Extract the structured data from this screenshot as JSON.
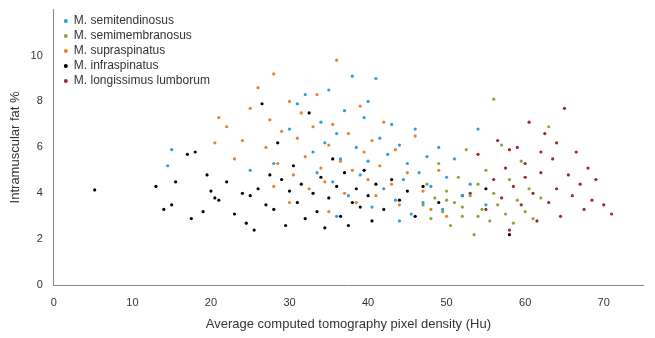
{
  "chart_data": {
    "type": "scatter",
    "x_label": "Average computed tomography pixel density (Hu)",
    "y_label": "Intramuscular fat %",
    "xlim": [
      0,
      75
    ],
    "xticks": [
      0,
      10,
      20,
      30,
      40,
      50,
      60,
      70
    ],
    "ylim": [
      0,
      12
    ],
    "yticks": [
      0,
      2,
      4,
      6,
      8,
      10
    ],
    "grid": false,
    "legend": "top-left",
    "marker": "circle",
    "series": [
      {
        "name": "M. semitendinosus",
        "color": "#2c9ee0",
        "values": [
          [
            14.5,
            5.2
          ],
          [
            15,
            5.9
          ],
          [
            25,
            5.0
          ],
          [
            28,
            5.3
          ],
          [
            30,
            6.8
          ],
          [
            31,
            7.9
          ],
          [
            32,
            8.3
          ],
          [
            33,
            5.8
          ],
          [
            33.5,
            4.9
          ],
          [
            34,
            7.1
          ],
          [
            34.5,
            6.2
          ],
          [
            35,
            8.5
          ],
          [
            35.5,
            4.5
          ],
          [
            36,
            6.6
          ],
          [
            36.5,
            5.5
          ],
          [
            37,
            7.6
          ],
          [
            37.5,
            3.9
          ],
          [
            38,
            9.1
          ],
          [
            38.5,
            6.0
          ],
          [
            39,
            4.8
          ],
          [
            39.5,
            7.3
          ],
          [
            40,
            5.4
          ],
          [
            40.5,
            3.4
          ],
          [
            41,
            9.0
          ],
          [
            41.5,
            6.4
          ],
          [
            42,
            4.2
          ],
          [
            42.5,
            5.7
          ],
          [
            43,
            7.0
          ],
          [
            43.5,
            3.7
          ],
          [
            44,
            6.1
          ],
          [
            44.5,
            4.6
          ],
          [
            45,
            5.3
          ],
          [
            45.5,
            3.1
          ],
          [
            46,
            6.8
          ],
          [
            46.5,
            4.9
          ],
          [
            47,
            3.6
          ],
          [
            47.5,
            5.6
          ],
          [
            48,
            4.3
          ],
          [
            49,
            6.0
          ],
          [
            49.5,
            3.3
          ],
          [
            50,
            4.7
          ],
          [
            51,
            5.5
          ],
          [
            52,
            3.9
          ],
          [
            53,
            4.4
          ],
          [
            54,
            6.8
          ],
          [
            55,
            3.5
          ],
          [
            36,
            3.0
          ],
          [
            44,
            2.8
          ],
          [
            40,
            8.0
          ]
        ]
      },
      {
        "name": "M. semimembranosus",
        "color": "#8aa63a",
        "values": [
          [
            47,
            3.5
          ],
          [
            47.5,
            4.4
          ],
          [
            48,
            2.9
          ],
          [
            48.5,
            3.8
          ],
          [
            49,
            5.3
          ],
          [
            49.5,
            3.2
          ],
          [
            50,
            4.1
          ],
          [
            50.5,
            2.6
          ],
          [
            51,
            3.6
          ],
          [
            51.5,
            4.7
          ],
          [
            52,
            3.0
          ],
          [
            52.5,
            5.9
          ],
          [
            53,
            3.9
          ],
          [
            53.5,
            2.2
          ],
          [
            54,
            4.4
          ],
          [
            54.5,
            3.3
          ],
          [
            55,
            5.0
          ],
          [
            55.5,
            2.8
          ],
          [
            56,
            4.0
          ],
          [
            56.5,
            3.5
          ],
          [
            57,
            6.1
          ],
          [
            57.5,
            3.1
          ],
          [
            58,
            4.6
          ],
          [
            58.5,
            2.7
          ],
          [
            59,
            3.7
          ],
          [
            59.5,
            5.4
          ],
          [
            60,
            3.2
          ],
          [
            60.5,
            4.2
          ],
          [
            61,
            2.9
          ],
          [
            62,
            3.8
          ],
          [
            63,
            6.9
          ],
          [
            56,
            8.1
          ],
          [
            54,
            3.0
          ],
          [
            52,
            3.4
          ],
          [
            50,
            3.7
          ]
        ]
      },
      {
        "name": "M. supraspinatus",
        "color": "#f07f2a",
        "values": [
          [
            20.5,
            6.2
          ],
          [
            21,
            7.3
          ],
          [
            22,
            6.9
          ],
          [
            23,
            5.5
          ],
          [
            24,
            6.3
          ],
          [
            25,
            7.7
          ],
          [
            26,
            8.6
          ],
          [
            27,
            6.0
          ],
          [
            27.5,
            7.2
          ],
          [
            28,
            9.2
          ],
          [
            28.5,
            5.3
          ],
          [
            29,
            6.7
          ],
          [
            30,
            8.0
          ],
          [
            30.5,
            4.8
          ],
          [
            31,
            6.4
          ],
          [
            31.5,
            7.5
          ],
          [
            32,
            5.6
          ],
          [
            32.5,
            4.2
          ],
          [
            33,
            6.9
          ],
          [
            33.5,
            8.3
          ],
          [
            34,
            5.1
          ],
          [
            34.5,
            4.5
          ],
          [
            35,
            6.1
          ],
          [
            35.5,
            7.0
          ],
          [
            36,
            9.8
          ],
          [
            36.5,
            5.4
          ],
          [
            37,
            4.0
          ],
          [
            37.5,
            6.6
          ],
          [
            38,
            5.0
          ],
          [
            38.5,
            3.6
          ],
          [
            39,
            7.8
          ],
          [
            39.5,
            5.8
          ],
          [
            40,
            4.6
          ],
          [
            40.5,
            6.3
          ],
          [
            41,
            3.9
          ],
          [
            41.5,
            5.2
          ],
          [
            42,
            7.1
          ],
          [
            43,
            4.4
          ],
          [
            43.5,
            5.9
          ],
          [
            44,
            3.5
          ],
          [
            45,
            4.9
          ],
          [
            46,
            6.5
          ],
          [
            47,
            4.1
          ],
          [
            48,
            3.3
          ],
          [
            49,
            5.0
          ],
          [
            50,
            3.0
          ],
          [
            30,
            3.6
          ],
          [
            35,
            3.2
          ],
          [
            28,
            4.3
          ]
        ]
      },
      {
        "name": "M. infraspinatus",
        "color": "#000000",
        "values": [
          [
            5.2,
            4.15
          ],
          [
            13,
            4.3
          ],
          [
            14,
            3.3
          ],
          [
            15,
            3.5
          ],
          [
            15.5,
            4.5
          ],
          [
            17,
            5.7
          ],
          [
            17.5,
            2.9
          ],
          [
            18,
            5.8
          ],
          [
            19,
            3.2
          ],
          [
            19.5,
            4.8
          ],
          [
            20,
            4.1
          ],
          [
            20.5,
            3.8
          ],
          [
            21,
            3.7
          ],
          [
            22,
            4.5
          ],
          [
            23,
            3.1
          ],
          [
            24,
            4.0
          ],
          [
            24.5,
            2.7
          ],
          [
            25,
            3.9
          ],
          [
            25.5,
            2.4
          ],
          [
            26,
            4.2
          ],
          [
            26.5,
            7.9
          ],
          [
            27,
            3.5
          ],
          [
            27.5,
            4.8
          ],
          [
            28,
            3.3
          ],
          [
            28.5,
            6.2
          ],
          [
            29,
            4.6
          ],
          [
            29.5,
            2.6
          ],
          [
            30,
            4.1
          ],
          [
            30.5,
            5.2
          ],
          [
            31,
            3.6
          ],
          [
            31.5,
            4.4
          ],
          [
            32,
            2.9
          ],
          [
            32.5,
            7.5
          ],
          [
            33,
            4.0
          ],
          [
            33.5,
            3.2
          ],
          [
            34,
            4.7
          ],
          [
            34.5,
            2.5
          ],
          [
            35,
            3.8
          ],
          [
            35.5,
            5.5
          ],
          [
            36,
            4.3
          ],
          [
            36.5,
            3.0
          ],
          [
            37,
            4.9
          ],
          [
            37.5,
            2.6
          ],
          [
            38,
            3.6
          ],
          [
            38.5,
            4.2
          ],
          [
            39,
            3.4
          ],
          [
            39.5,
            5.0
          ],
          [
            40,
            3.9
          ],
          [
            40.5,
            2.8
          ],
          [
            41,
            4.4
          ],
          [
            42,
            3.3
          ],
          [
            43,
            4.6
          ],
          [
            44,
            3.7
          ],
          [
            45,
            4.1
          ],
          [
            46,
            3.0
          ],
          [
            47,
            4.3
          ],
          [
            49,
            3.6
          ],
          [
            52,
            3.9
          ],
          [
            55,
            4.2
          ],
          [
            58,
            2.2
          ]
        ]
      },
      {
        "name": "M. longissimus lumborum",
        "color": "#a0282c",
        "values": [
          [
            53,
            4.0
          ],
          [
            54,
            5.7
          ],
          [
            55,
            3.3
          ],
          [
            56,
            4.6
          ],
          [
            56.5,
            6.3
          ],
          [
            57,
            3.8
          ],
          [
            57.5,
            5.1
          ],
          [
            58,
            2.4
          ],
          [
            58.5,
            4.3
          ],
          [
            59,
            6.0
          ],
          [
            59.5,
            3.5
          ],
          [
            60,
            5.3
          ],
          [
            60.5,
            7.1
          ],
          [
            61,
            4.0
          ],
          [
            61.5,
            2.8
          ],
          [
            62,
            4.9
          ],
          [
            62.5,
            6.6
          ],
          [
            63,
            3.6
          ],
          [
            63.5,
            5.5
          ],
          [
            64,
            4.2
          ],
          [
            64.5,
            3.0
          ],
          [
            65,
            7.7
          ],
          [
            65.5,
            4.8
          ],
          [
            66,
            3.9
          ],
          [
            66.5,
            5.8
          ],
          [
            67,
            4.4
          ],
          [
            67.5,
            3.3
          ],
          [
            68,
            5.1
          ],
          [
            68.5,
            3.7
          ],
          [
            69,
            4.6
          ],
          [
            70,
            3.5
          ],
          [
            71,
            3.1
          ],
          [
            62,
            5.8
          ],
          [
            60,
            4.7
          ],
          [
            58,
            5.9
          ],
          [
            64,
            6.2
          ]
        ]
      }
    ]
  }
}
